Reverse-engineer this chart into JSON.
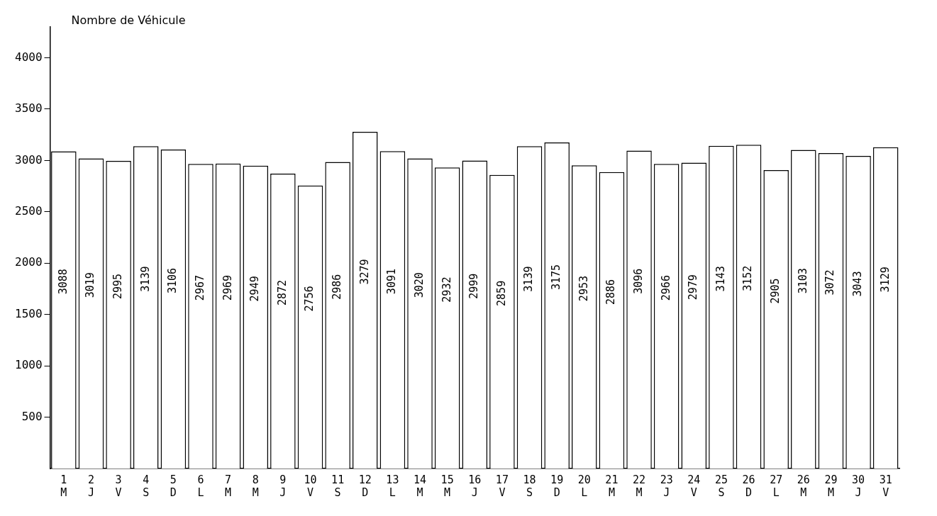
{
  "chart_data": {
    "type": "bar",
    "ylabel": "Nombre de Véhicule",
    "categories": [
      "1\nM",
      "2\nJ",
      "3\nV",
      "4\nS",
      "5\nD",
      "6\nL",
      "7\nM",
      "8\nM",
      "9\nJ",
      "10\nV",
      "11\nS",
      "12\nD",
      "13\nL",
      "14\nM",
      "15\nM",
      "16\nJ",
      "17\nV",
      "18\nS",
      "19\nD",
      "20\nL",
      "21\nM",
      "22\nM",
      "23\nJ",
      "24\nV",
      "25\nS",
      "26\nD",
      "27\nL",
      "26\nM",
      "29\nM",
      "30\nJ",
      "31\nV"
    ],
    "values": [
      3088,
      3019,
      2995,
      3139,
      3106,
      2967,
      2969,
      2949,
      2872,
      2756,
      2986,
      3279,
      3091,
      3020,
      2932,
      2999,
      2859,
      3139,
      3175,
      2953,
      2886,
      3096,
      2966,
      2979,
      3143,
      3152,
      2905,
      3103,
      3072,
      3043,
      3129
    ],
    "color": "#ffffff",
    "ylim": [
      0,
      4300
    ],
    "yticks": [
      500,
      1000,
      1500,
      2000,
      2500,
      3000,
      3500,
      4000
    ],
    "grid": false,
    "legend": false,
    "data_labels": true
  }
}
